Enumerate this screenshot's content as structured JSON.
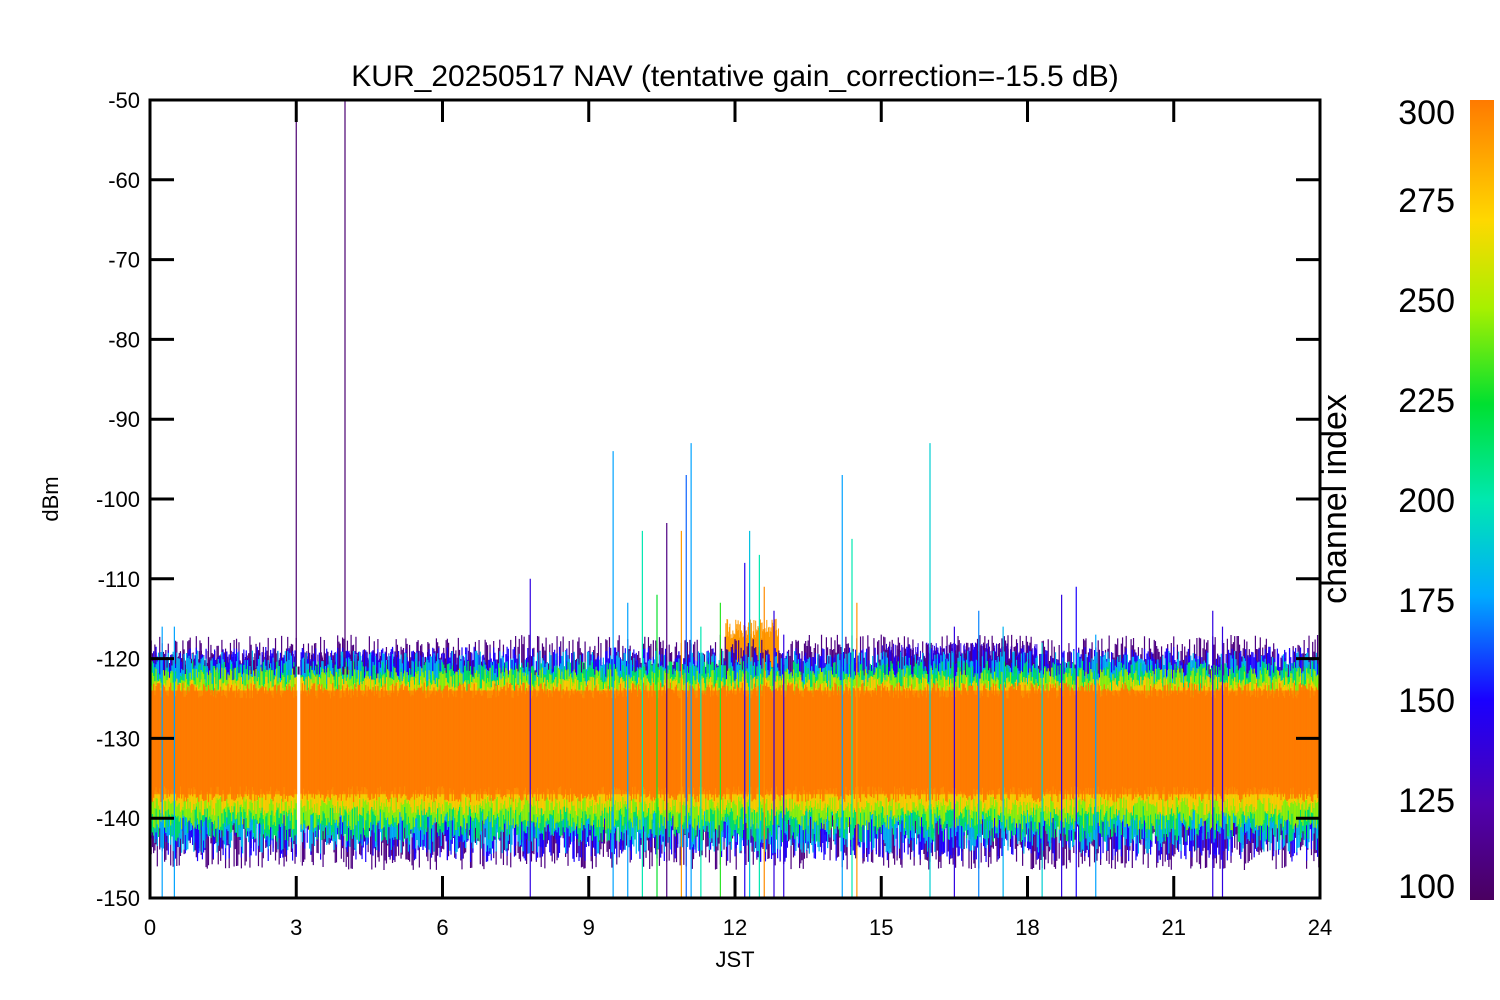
{
  "chart_data": {
    "type": "line",
    "title": "KUR_20250517 NAV (tentative gain_correction=-15.5 dB)",
    "xlabel": "JST",
    "ylabel": "dBm",
    "xlim": [
      0,
      24
    ],
    "ylim": [
      -150,
      -50
    ],
    "x_ticks": [
      "0",
      "3",
      "6",
      "9",
      "12",
      "15",
      "18",
      "21",
      "24"
    ],
    "y_ticks": [
      "-50",
      "-60",
      "-70",
      "-80",
      "-90",
      "-100",
      "-110",
      "-120",
      "-130",
      "-140",
      "-150"
    ],
    "grid": false,
    "colorbar": {
      "label": "channel index",
      "range": [
        100,
        300
      ],
      "ticks": [
        "100",
        "125",
        "150",
        "175",
        "200",
        "225",
        "250",
        "275",
        "300"
      ],
      "colormap": "rainbow (purple-blue-cyan-green-yellow-orange)"
    },
    "noise_floor": {
      "center_dbm": -130,
      "core_band_dbm": [
        -137,
        -124
      ],
      "upper_edge_dbm": -121,
      "lower_edge_dbm": -141
    },
    "data_gap": {
      "x_start": 3.0,
      "x_end": 3.05
    },
    "spikes": [
      {
        "x": 3.0,
        "peak_dbm": -50,
        "channel": 105
      },
      {
        "x": 4.0,
        "peak_dbm": -50,
        "channel": 105
      },
      {
        "x": 0.25,
        "peak_dbm": -116,
        "channel": 175
      },
      {
        "x": 0.5,
        "peak_dbm": -116,
        "channel": 175
      },
      {
        "x": 7.8,
        "peak_dbm": -110,
        "channel": 140
      },
      {
        "x": 9.5,
        "peak_dbm": -94,
        "channel": 175
      },
      {
        "x": 9.8,
        "peak_dbm": -113,
        "channel": 175
      },
      {
        "x": 10.1,
        "peak_dbm": -104,
        "channel": 200
      },
      {
        "x": 10.4,
        "peak_dbm": -112,
        "channel": 225
      },
      {
        "x": 10.6,
        "peak_dbm": -103,
        "channel": 110
      },
      {
        "x": 10.9,
        "peak_dbm": -104,
        "channel": 290
      },
      {
        "x": 11.0,
        "peak_dbm": -97,
        "channel": 165
      },
      {
        "x": 11.1,
        "peak_dbm": -93,
        "channel": 175
      },
      {
        "x": 11.3,
        "peak_dbm": -116,
        "channel": 200
      },
      {
        "x": 11.7,
        "peak_dbm": -113,
        "channel": 230
      },
      {
        "x": 12.2,
        "peak_dbm": -108,
        "channel": 145
      },
      {
        "x": 12.3,
        "peak_dbm": -104,
        "channel": 185
      },
      {
        "x": 12.5,
        "peak_dbm": -107,
        "channel": 200
      },
      {
        "x": 12.6,
        "peak_dbm": -111,
        "channel": 295
      },
      {
        "x": 12.8,
        "peak_dbm": -114,
        "channel": 140
      },
      {
        "x": 13.0,
        "peak_dbm": -117,
        "channel": 140
      },
      {
        "x": 14.2,
        "peak_dbm": -97,
        "channel": 175
      },
      {
        "x": 14.4,
        "peak_dbm": -105,
        "channel": 200
      },
      {
        "x": 14.5,
        "peak_dbm": -113,
        "channel": 290
      },
      {
        "x": 16.0,
        "peak_dbm": -93,
        "channel": 190
      },
      {
        "x": 16.5,
        "peak_dbm": -116,
        "channel": 140
      },
      {
        "x": 17.0,
        "peak_dbm": -114,
        "channel": 170
      },
      {
        "x": 17.5,
        "peak_dbm": -116,
        "channel": 180
      },
      {
        "x": 18.3,
        "peak_dbm": -118,
        "channel": 190
      },
      {
        "x": 18.7,
        "peak_dbm": -112,
        "channel": 140
      },
      {
        "x": 19.0,
        "peak_dbm": -111,
        "channel": 150
      },
      {
        "x": 19.4,
        "peak_dbm": -117,
        "channel": 175
      },
      {
        "x": 21.8,
        "peak_dbm": -114,
        "channel": 140
      },
      {
        "x": 22.0,
        "peak_dbm": -116,
        "channel": 140
      }
    ],
    "elevated_regions": [
      {
        "x_range": [
          0.3,
          4.8
        ],
        "top_dbm": -119,
        "channel": 110
      },
      {
        "x_range": [
          4.0,
          7.0
        ],
        "top_dbm": -119,
        "channel": 140
      },
      {
        "x_range": [
          15.0,
          18.2
        ],
        "top_dbm": -118,
        "channel": 140
      },
      {
        "x_range": [
          11.8,
          12.9
        ],
        "top_dbm": -115,
        "channel": 290
      }
    ]
  }
}
